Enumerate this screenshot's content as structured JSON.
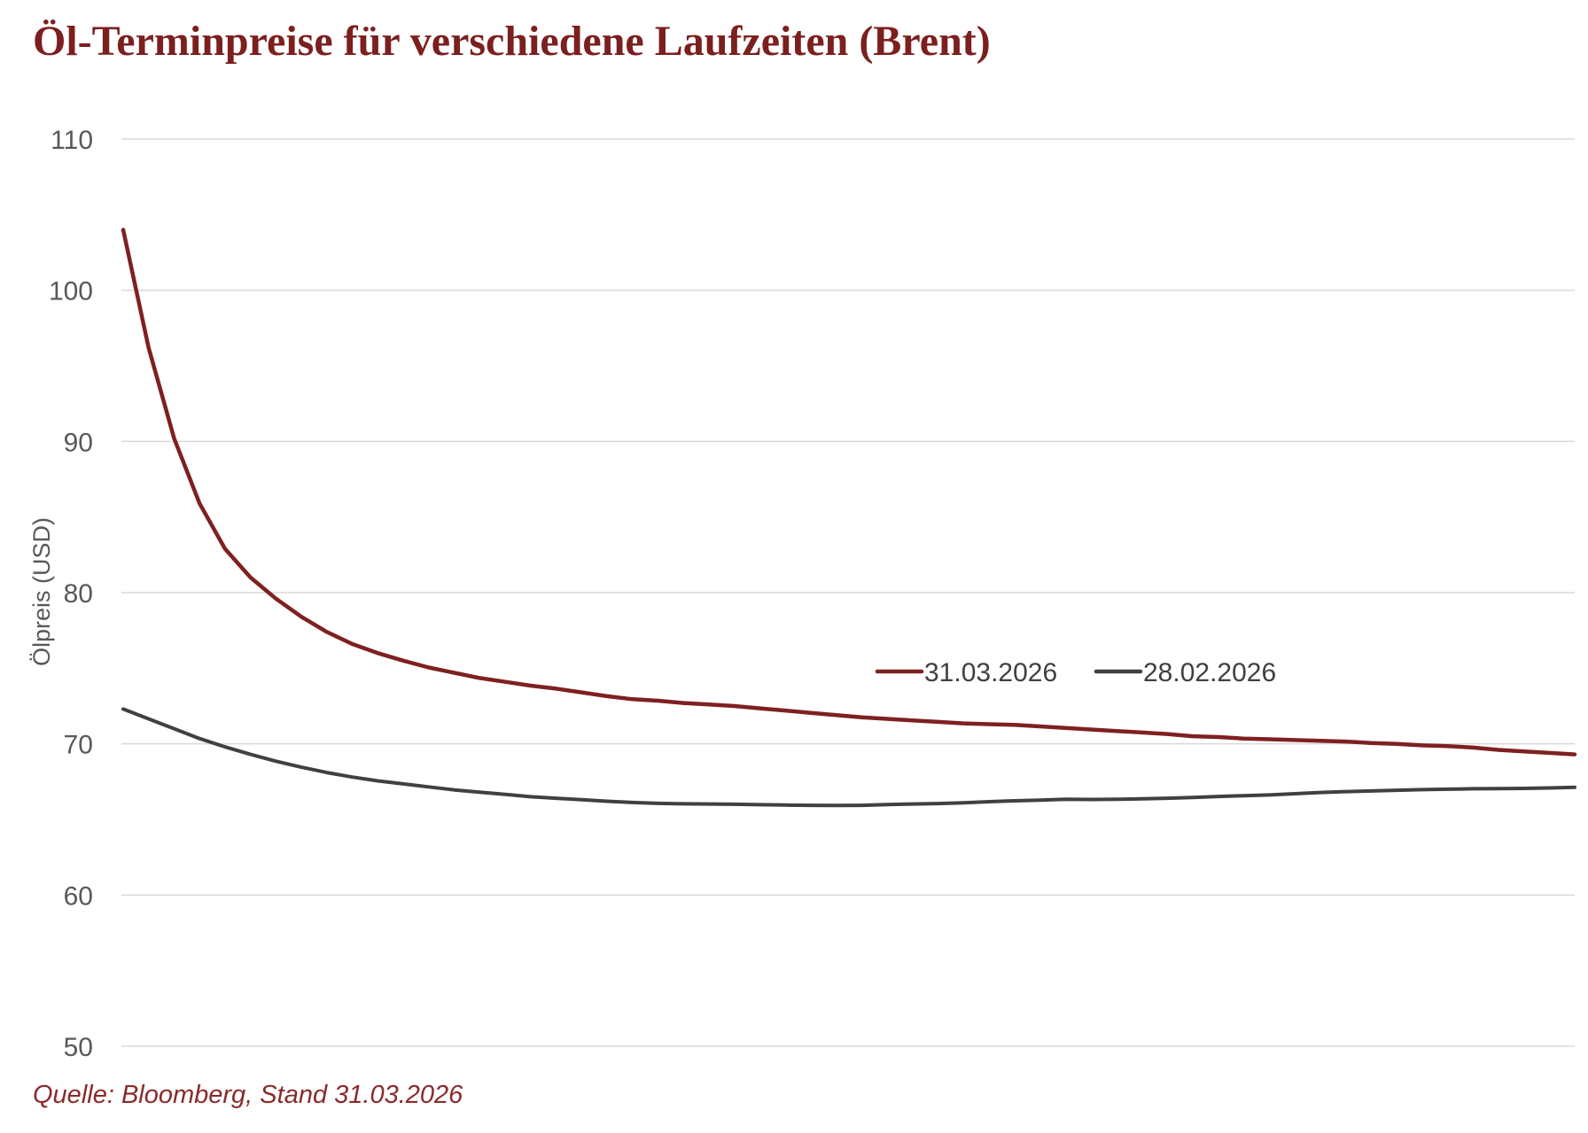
{
  "title": "Öl-Terminpreise für verschiedene Laufzeiten (Brent)",
  "source": "Quelle: Bloomberg, Stand 31.03.2026",
  "colors": {
    "title": "#7b1f1f",
    "source": "#8a2a2a",
    "grid": "#d9d9d9",
    "tick_text": "#595959",
    "legend_text": "#404040"
  },
  "chart_data": {
    "type": "line",
    "title": "Öl-Terminpreise für verschiedene Laufzeiten (Brent)",
    "xlabel": "",
    "ylabel": "Ölpreis (USD)",
    "ylim": [
      50,
      110
    ],
    "yticks": [
      50,
      60,
      70,
      80,
      90,
      100,
      110
    ],
    "grid": true,
    "legend": "center",
    "x": [
      0,
      1,
      2,
      3,
      4,
      5,
      6,
      7,
      8,
      9,
      10,
      11,
      12,
      13,
      14,
      15,
      16,
      17,
      18,
      19,
      20,
      21,
      22,
      23,
      24,
      25,
      26,
      27,
      28,
      29,
      30,
      31,
      32,
      33,
      34,
      35,
      36,
      37,
      38,
      39,
      40,
      41,
      42,
      43,
      44,
      45,
      46,
      47,
      48,
      49,
      50,
      51,
      52,
      53,
      54,
      55,
      56,
      57
    ],
    "series": [
      {
        "name": "31.03.2026",
        "color": "#7f2020",
        "values": [
          104.0,
          96.2,
          90.2,
          85.9,
          82.9,
          81.0,
          79.6,
          78.4,
          77.4,
          76.6,
          76.0,
          75.5,
          75.05,
          74.7,
          74.35,
          74.1,
          73.85,
          73.65,
          73.4,
          73.15,
          72.95,
          72.85,
          72.7,
          72.6,
          72.5,
          72.35,
          72.2,
          72.05,
          71.9,
          71.75,
          71.65,
          71.55,
          71.45,
          71.35,
          71.3,
          71.25,
          71.15,
          71.05,
          70.95,
          70.85,
          70.75,
          70.65,
          70.5,
          70.45,
          70.35,
          70.3,
          70.25,
          70.2,
          70.15,
          70.05,
          70.0,
          69.9,
          69.85,
          69.75,
          69.6,
          69.5,
          69.4,
          69.3
        ]
      },
      {
        "name": "28.02.2026",
        "color": "#404040",
        "values": [
          72.3,
          71.65,
          71.0,
          70.35,
          69.8,
          69.3,
          68.85,
          68.45,
          68.1,
          67.8,
          67.55,
          67.35,
          67.15,
          66.95,
          66.8,
          66.65,
          66.5,
          66.4,
          66.3,
          66.2,
          66.12,
          66.06,
          66.03,
          66.02,
          66.0,
          65.97,
          65.95,
          65.93,
          65.92,
          65.93,
          65.98,
          66.02,
          66.05,
          66.1,
          66.17,
          66.23,
          66.28,
          66.33,
          66.32,
          66.33,
          66.36,
          66.4,
          66.45,
          66.52,
          66.57,
          66.62,
          66.7,
          66.78,
          66.84,
          66.88,
          66.93,
          66.97,
          67.0,
          67.03,
          67.04,
          67.05,
          67.08,
          67.12
        ]
      }
    ]
  }
}
